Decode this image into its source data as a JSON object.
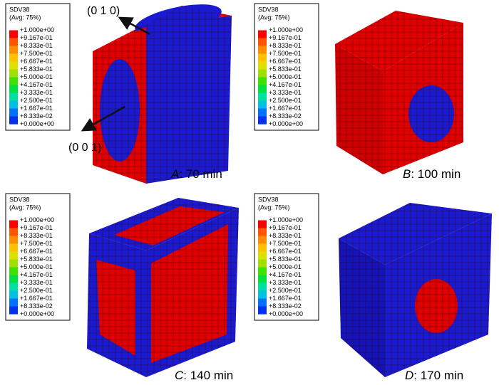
{
  "legend": {
    "title": "SDV38",
    "subtitle": "(Avg: 75%)",
    "labels": [
      "+1.000e+00",
      "+9.167e-01",
      "+8.333e-01",
      "+7.500e-01",
      "+6.667e-01",
      "+5.833e-01",
      "+5.000e-01",
      "+4.167e-01",
      "+3.333e-01",
      "+2.500e-01",
      "+1.667e-01",
      "+8.333e-02",
      "+0.000e+00"
    ],
    "colors": [
      "#ff0000",
      "#ff5500",
      "#ff8c00",
      "#ffc000",
      "#e0e000",
      "#a0e000",
      "#40e000",
      "#00e040",
      "#00e0a0",
      "#00c0e0",
      "#0070ff",
      "#0030f0",
      "#0000c8"
    ]
  },
  "panels": [
    {
      "letter": "A",
      "time": ": 70 min"
    },
    {
      "letter": "B",
      "time": ": 100 min"
    },
    {
      "letter": "C",
      "time": ": 140 min"
    },
    {
      "letter": "D",
      "time": ": 170 min"
    }
  ],
  "annotations": [
    "(0 1 0)",
    "(0 0 1)"
  ]
}
